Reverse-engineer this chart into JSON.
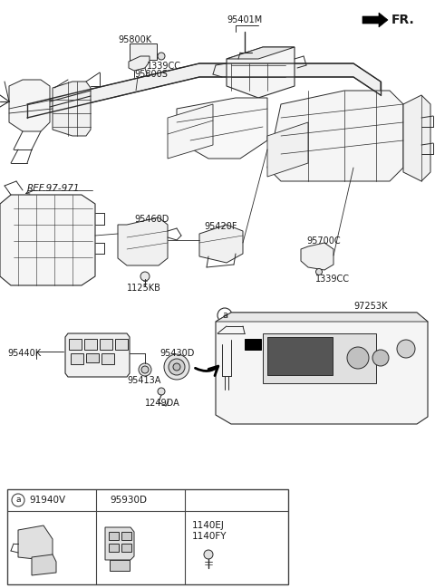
{
  "bg_color": "#ffffff",
  "line_color": "#2a2a2a",
  "text_color": "#1a1a1a",
  "labels": {
    "FR": "FR.",
    "95800K": "95800K",
    "1339CC_top": "1339CC",
    "95800S": "95800S",
    "95401M": "95401M",
    "REF_97_971": "REF.97-971",
    "95460D": "95460D",
    "95420F": "95420F",
    "95700C": "95700C",
    "1339CC_bot": "1339CC",
    "1125KB": "1125KB",
    "97253K": "97253K",
    "95440K": "95440K",
    "95413A": "95413A",
    "95430D": "95430D",
    "1249DA": "1249DA",
    "circle_a": "a",
    "91940V": "91940V",
    "95930D": "95930D",
    "1140EJ": "1140EJ",
    "1140FY": "1140FY"
  },
  "figsize": [
    4.8,
    6.49
  ],
  "dpi": 100
}
